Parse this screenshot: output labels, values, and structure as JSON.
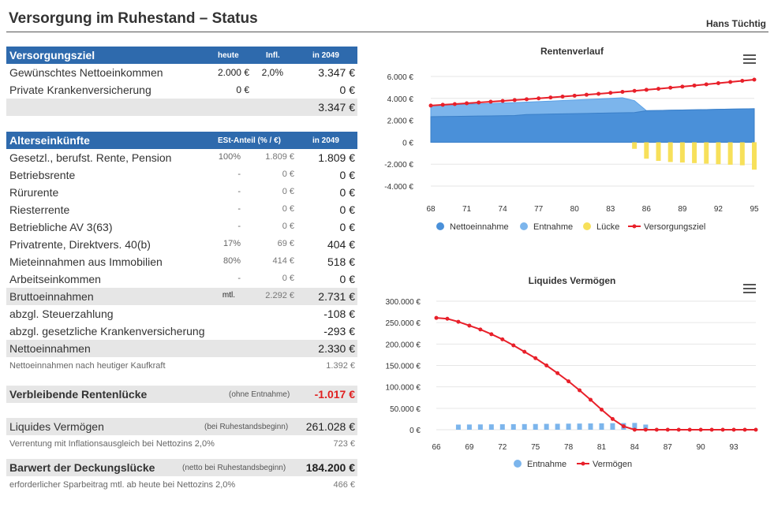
{
  "header": {
    "title": "Versorgung im Ruhestand  –  Status",
    "user": "Hans Tüchtig"
  },
  "versorgungsziel": {
    "title": "Versorgungsziel",
    "col_heute": "heute",
    "col_infl": "Infl.",
    "col_year": "in 2049",
    "rows": [
      {
        "label": "Gewünschtes Nettoeinkommen",
        "heute": "2.000 €",
        "infl": "2,0%",
        "year": "3.347 €"
      },
      {
        "label": "Private Krankenversicherung",
        "heute": "0 €",
        "infl": "",
        "year": "0 €"
      }
    ],
    "total": "3.347 €"
  },
  "alterseinkuenfte": {
    "title": "Alterseinkünfte",
    "col_est": "ESt-Anteil (% / €)",
    "col_year": "in 2049",
    "rows": [
      {
        "label": "Gesetzl., berufst. Rente, Pension",
        "pct": "100%",
        "est": "1.809 €",
        "year": "1.809 €"
      },
      {
        "label": "Betriebsrente",
        "pct": "-",
        "est": "0 €",
        "year": "0 €"
      },
      {
        "label": "Rürurente",
        "pct": "-",
        "est": "0 €",
        "year": "0 €"
      },
      {
        "label": "Riesterrente",
        "pct": "-",
        "est": "0 €",
        "year": "0 €"
      },
      {
        "label": "Betriebliche AV 3(63)",
        "pct": "-",
        "est": "0 €",
        "year": "0 €"
      },
      {
        "label": "Privatrente, Direktvers. 40(b)",
        "pct": "17%",
        "est": "69 €",
        "year": "404 €"
      },
      {
        "label": "Mieteinnahmen aus Immobilien",
        "pct": "80%",
        "est": "414 €",
        "year": "518 €"
      },
      {
        "label": "Arbeitseinkommen",
        "pct": "-",
        "est": "0 €",
        "year": "0 €"
      }
    ],
    "brutto": {
      "label": "Bruttoeinnahmen",
      "pct": "mtl.",
      "est": "2.292 €",
      "year": "2.731 €"
    },
    "steuer": {
      "label": "abzgl. Steuerzahlung",
      "year": "-108 €"
    },
    "kv": {
      "label": "abzgl. gesetzliche Krankenversicherung",
      "year": "-293 €"
    },
    "netto": {
      "label": "Nettoeinnahmen",
      "year": "2.330 €"
    },
    "kaufkraft": {
      "label": "Nettoeinnahmen nach heutiger Kaufkraft",
      "year": "1.392 €"
    }
  },
  "luecke": {
    "label": "Verbleibende Rentenlücke",
    "note": "(ohne Entnahme)",
    "value": "-1.017 €"
  },
  "vermoegen": {
    "label": "Liquides Vermögen",
    "note": "(bei Ruhestandsbeginn)",
    "value": "261.028 €",
    "sub_label": "Verrentung mit Inflationsausgleich bei Nettozins 2,0%",
    "sub_value": "723 €"
  },
  "barwert": {
    "label": "Barwert der Deckungslücke",
    "note": "(netto bei Ruhestandsbeginn)",
    "value": "184.200 €",
    "sub_label": "erforderlicher Sparbeitrag mtl. ab heute bei Nettozins 2,0%",
    "sub_value": "466 €"
  },
  "chart_data": [
    {
      "type": "area",
      "title": "Rentenverlauf",
      "x_ticks": [
        "68",
        "71",
        "74",
        "77",
        "80",
        "83",
        "86",
        "89",
        "92",
        "95"
      ],
      "y_ticks": [
        "6.000 €",
        "4.000 €",
        "2.000 €",
        "0 €",
        "-2.000 €",
        "-4.000 €"
      ],
      "ylim": [
        -4500,
        6500
      ],
      "x": [
        68,
        69,
        70,
        71,
        72,
        73,
        74,
        75,
        76,
        77,
        78,
        79,
        80,
        81,
        82,
        83,
        84,
        85,
        86,
        87,
        88,
        89,
        90,
        91,
        92,
        93,
        94,
        95
      ],
      "series": [
        {
          "name": "Nettoeinnahme",
          "color": "#4a90d9",
          "values": [
            2330,
            2345,
            2360,
            2375,
            2390,
            2405,
            2420,
            2440,
            2530,
            2550,
            2570,
            2590,
            2610,
            2630,
            2650,
            2670,
            2690,
            2710,
            2880,
            2900,
            2920,
            2940,
            2960,
            2980,
            3000,
            3020,
            3040,
            3060
          ]
        },
        {
          "name": "Entnahme",
          "color": "#7cb5ec",
          "values": [
            1017,
            1040,
            1062,
            1085,
            1108,
            1131,
            1155,
            1179,
            1129,
            1156,
            1183,
            1212,
            1240,
            1270,
            1300,
            1330,
            1361,
            1082,
            0,
            0,
            0,
            0,
            0,
            0,
            0,
            0,
            0,
            0
          ]
        },
        {
          "name": "Lücke",
          "color": "#f7e05a",
          "values": [
            0,
            0,
            0,
            0,
            0,
            0,
            0,
            0,
            0,
            0,
            0,
            0,
            0,
            0,
            0,
            0,
            0,
            -600,
            -1500,
            -1700,
            -1800,
            -1850,
            -1900,
            -1950,
            -2000,
            -2050,
            -2100,
            -2500
          ]
        },
        {
          "name": "Versorgungsziel",
          "color": "#e8202a",
          "values": [
            3347,
            3414,
            3482,
            3552,
            3623,
            3695,
            3769,
            3845,
            3921,
            4000,
            4080,
            4161,
            4245,
            4330,
            4416,
            4504,
            4594,
            4686,
            4780,
            4876,
            4973,
            5073,
            5174,
            5277,
            5383,
            5491,
            5600,
            5712
          ]
        }
      ]
    },
    {
      "type": "line",
      "title": "Liquides Vermögen",
      "x_ticks": [
        "66",
        "69",
        "72",
        "75",
        "78",
        "81",
        "84",
        "87",
        "90",
        "93"
      ],
      "y_ticks": [
        "300.000 €",
        "250.000 €",
        "200.000 €",
        "150.000 €",
        "100.000 €",
        "50.000 €",
        "0 €"
      ],
      "ylim": [
        0,
        300000
      ],
      "x": [
        66,
        67,
        68,
        69,
        70,
        71,
        72,
        73,
        74,
        75,
        76,
        77,
        78,
        79,
        80,
        81,
        82,
        83,
        84,
        85,
        86,
        87,
        88,
        89,
        90,
        91,
        92,
        93,
        94,
        95
      ],
      "series": [
        {
          "name": "Entnahme",
          "color": "#7cb5ec",
          "values": [
            0,
            0,
            12000,
            12200,
            12400,
            12600,
            12800,
            13000,
            13200,
            13400,
            13700,
            13900,
            14200,
            14400,
            14700,
            15000,
            15300,
            15600,
            15900,
            12000,
            0,
            0,
            0,
            0,
            0,
            0,
            0,
            0,
            0,
            0
          ]
        },
        {
          "name": "Vermögen",
          "color": "#e8202a",
          "values": [
            261028,
            259000,
            252000,
            243000,
            234000,
            223000,
            211000,
            197000,
            182000,
            167000,
            150000,
            132000,
            113000,
            92000,
            70000,
            47000,
            25000,
            8000,
            0,
            0,
            0,
            0,
            0,
            0,
            0,
            0,
            0,
            0,
            0,
            0
          ]
        }
      ]
    }
  ]
}
